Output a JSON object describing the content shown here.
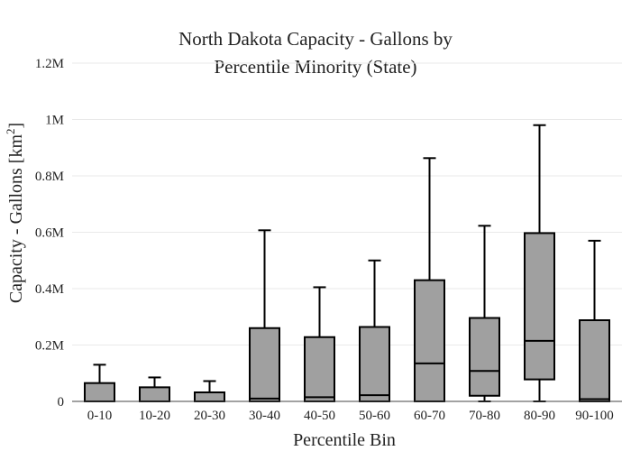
{
  "chart_data": {
    "type": "box",
    "title_lines": [
      "North Dakota Capacity - Gallons by",
      "Percentile Minority (State)"
    ],
    "xlabel": "Percentile Bin",
    "ylabel_main": "Capacity - Gallons  [km",
    "ylabel_sup": "2",
    "ylabel_end": "]",
    "categories": [
      "0-10",
      "10-20",
      "20-30",
      "30-40",
      "40-50",
      "50-60",
      "60-70",
      "70-80",
      "80-90",
      "90-100"
    ],
    "boxes": [
      {
        "min": 0,
        "q1": 0,
        "median": 0,
        "q3": 65000,
        "max": 130000
      },
      {
        "min": 0,
        "q1": 0,
        "median": 0,
        "q3": 50000,
        "max": 85000
      },
      {
        "min": 0,
        "q1": 0,
        "median": 0,
        "q3": 32000,
        "max": 72000
      },
      {
        "min": 0,
        "q1": 0,
        "median": 10000,
        "q3": 260000,
        "max": 607000
      },
      {
        "min": 0,
        "q1": 0,
        "median": 15000,
        "q3": 228000,
        "max": 405000
      },
      {
        "min": 0,
        "q1": 0,
        "median": 22000,
        "q3": 264000,
        "max": 500000
      },
      {
        "min": 0,
        "q1": 0,
        "median": 135000,
        "q3": 430000,
        "max": 863000
      },
      {
        "min": 0,
        "q1": 20000,
        "median": 108000,
        "q3": 296000,
        "max": 623000
      },
      {
        "min": 0,
        "q1": 78000,
        "median": 215000,
        "q3": 597000,
        "max": 980000
      },
      {
        "min": 0,
        "q1": 0,
        "median": 8000,
        "q3": 288000,
        "max": 570000
      }
    ],
    "ylim": [
      0,
      1200000
    ],
    "yticks": [
      0,
      200000,
      400000,
      600000,
      800000,
      1000000,
      1200000
    ],
    "ytick_labels": [
      "0",
      "0.2M",
      "0.4M",
      "0.6M",
      "0.8M",
      "1M",
      "1.2M"
    ],
    "grid": true,
    "colors": {
      "box_fill": "#a0a0a0",
      "box_stroke": "#000000",
      "grid": "#e9e9e9",
      "axis": "#444444"
    }
  }
}
